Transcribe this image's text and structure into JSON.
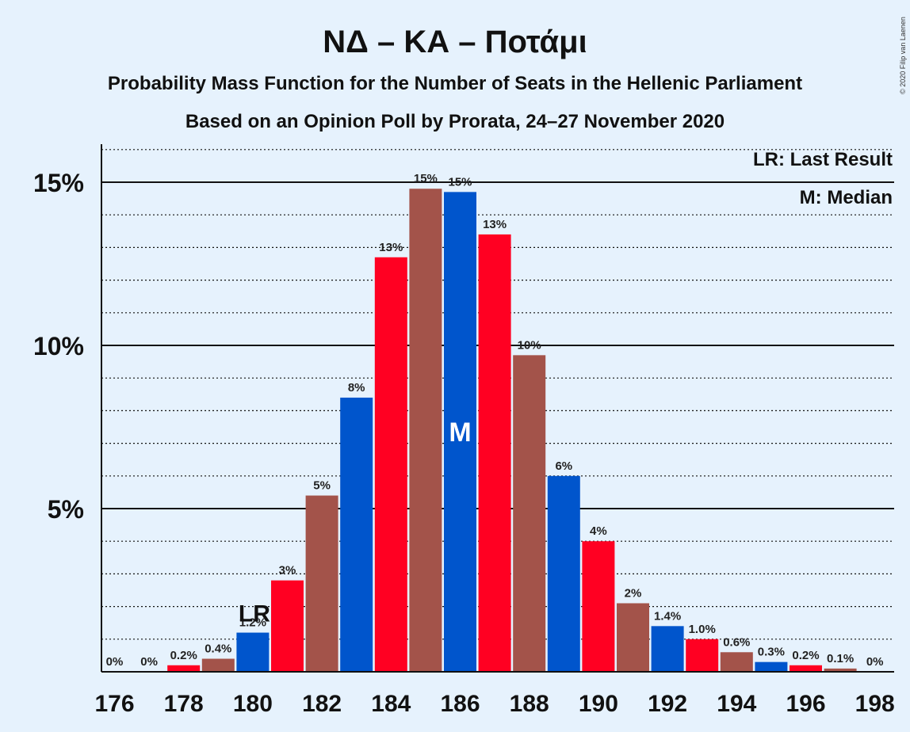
{
  "copyright": "© 2020 Filip van Laenen",
  "colors": {
    "blue": "#0055cc",
    "red": "#ff0022",
    "brown": "#a3534a",
    "background": "#e6f2fd"
  },
  "chart_data": {
    "type": "bar",
    "title": "ΝΔ – ΚΑ – Ποτάμι",
    "subtitle": "Probability Mass Function for the Number of Seats in the Hellenic Parliament",
    "subtitle2": "Based on an Opinion Poll by Prorata, 24–27 November 2020",
    "legend": {
      "placement": "top-right",
      "entries": [
        "LR: Last Result",
        "M: Median"
      ]
    },
    "x": [
      176,
      177,
      178,
      179,
      180,
      181,
      182,
      183,
      184,
      185,
      186,
      187,
      188,
      189,
      190,
      191,
      192,
      193,
      194,
      195,
      196,
      197,
      198
    ],
    "values": [
      0,
      0,
      0.2,
      0.4,
      1.2,
      2.8,
      5.4,
      8.4,
      12.7,
      14.8,
      14.7,
      13.4,
      9.7,
      6.0,
      4.0,
      2.1,
      1.4,
      1.0,
      0.6,
      0.3,
      0.2,
      0.1,
      0
    ],
    "data_labels": [
      "0%",
      "0%",
      "0.2%",
      "0.4%",
      "1.2%",
      "3%",
      "5%",
      "8%",
      "13%",
      "15%",
      "15%",
      "13%",
      "10%",
      "6%",
      "4%",
      "2%",
      "1.4%",
      "1.0%",
      "0.6%",
      "0.3%",
      "0.2%",
      "0.1%",
      "0%"
    ],
    "bar_colors": [
      "blue",
      "red",
      "red",
      "brown",
      "blue",
      "red",
      "brown",
      "blue",
      "red",
      "brown",
      "blue",
      "red",
      "brown",
      "blue",
      "red",
      "brown",
      "blue",
      "red",
      "brown",
      "blue",
      "red",
      "brown",
      "blue"
    ],
    "xticks": [
      176,
      178,
      180,
      182,
      184,
      186,
      188,
      190,
      192,
      194,
      196,
      198
    ],
    "yticks": [
      {
        "value": 5,
        "label": "5%"
      },
      {
        "value": 10,
        "label": "10%"
      },
      {
        "value": 15,
        "label": "15%"
      }
    ],
    "ylim": [
      0,
      16.2
    ],
    "last_result": {
      "x": 180,
      "label": "LR"
    },
    "median": {
      "x": 186,
      "label": "M"
    },
    "grid": {
      "major": [
        5,
        10,
        15
      ],
      "minor_step": 1
    }
  }
}
